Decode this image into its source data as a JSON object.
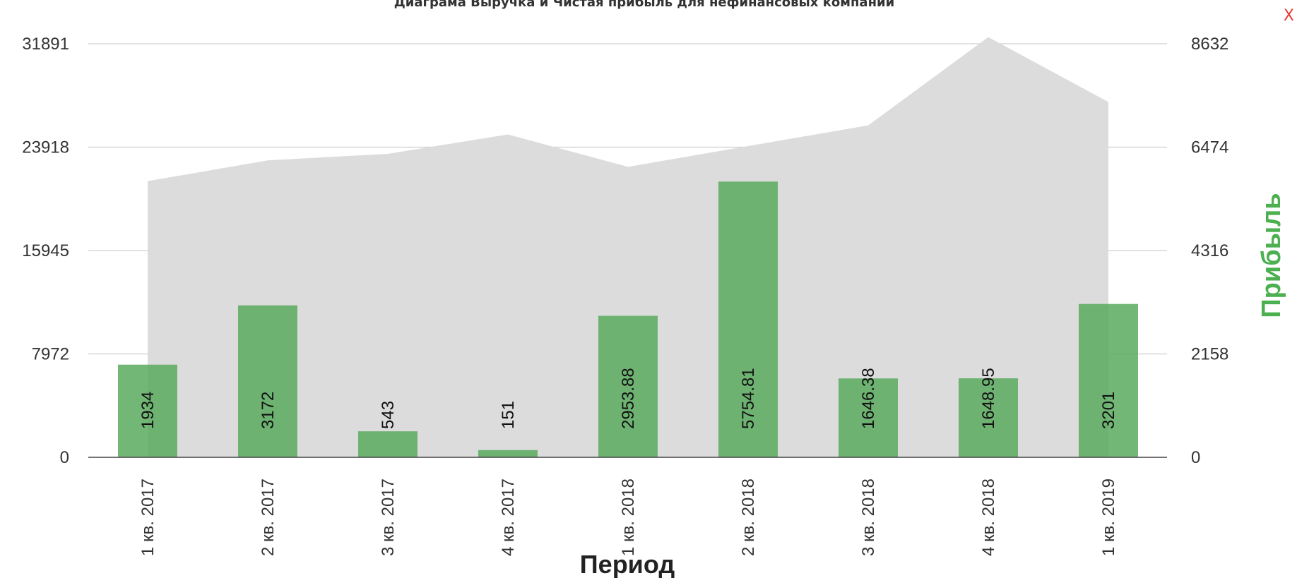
{
  "title": "Диаграма Выручка и Чистая прибыль для нефинансовых компаний",
  "close_label": "X",
  "chart_data": {
    "type": "bar",
    "title": "Диаграма Выручка и Чистая прибыль для нефинансовых компаний",
    "xlabel": "Период",
    "ylabel_right": "Прибыль",
    "categories": [
      "1 кв. 2017",
      "2 кв. 2017",
      "3 кв. 2017",
      "4 кв. 2017",
      "1 кв. 2018",
      "2 кв. 2018",
      "3 кв. 2018",
      "4 кв. 2018",
      "1 кв. 2019"
    ],
    "left_axis": {
      "ticks": [
        "0",
        "7972",
        "15945",
        "23918",
        "31891"
      ],
      "ylim": [
        0,
        31891
      ]
    },
    "right_axis": {
      "ticks": [
        "0",
        "2158",
        "4316",
        "6474",
        "8632"
      ],
      "ylim": [
        0,
        8632
      ]
    },
    "grid": true,
    "series": [
      {
        "type": "area",
        "axis": "left",
        "color": "#dcdcdc",
        "values": [
          21300,
          22900,
          23400,
          24900,
          22400,
          24000,
          25600,
          32400,
          27400
        ]
      },
      {
        "name": "Прибыль",
        "type": "bar",
        "axis": "right",
        "color": "#5aaa5f",
        "values": [
          1934,
          3172,
          543,
          151,
          2953.88,
          5754.81,
          1646.38,
          1648.95,
          3201
        ],
        "labels": [
          "1934",
          "3172",
          "543",
          "151",
          "2953.88",
          "5754.81",
          "1646.38",
          "1648.95",
          "3201"
        ]
      }
    ]
  }
}
